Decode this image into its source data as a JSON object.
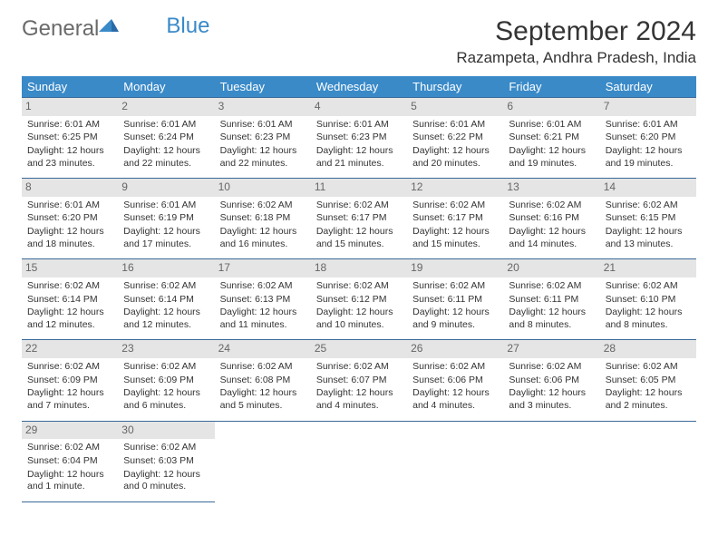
{
  "logo": {
    "text_general": "General",
    "text_blue": "Blue"
  },
  "title": "September 2024",
  "location": "Razampeta, Andhra Pradesh, India",
  "colors": {
    "header_bg": "#3a8ac8",
    "header_fg": "#ffffff",
    "cell_border": "#3a6a9a",
    "daynum_bg": "#e5e5e5",
    "daynum_fg": "#666666",
    "text": "#333333",
    "logo_gray": "#6a6a6a",
    "logo_blue": "#3a8ac8"
  },
  "day_headers": [
    "Sunday",
    "Monday",
    "Tuesday",
    "Wednesday",
    "Thursday",
    "Friday",
    "Saturday"
  ],
  "weeks": [
    [
      {
        "n": "1",
        "sr": "Sunrise: 6:01 AM",
        "ss": "Sunset: 6:25 PM",
        "dl": "Daylight: 12 hours and 23 minutes."
      },
      {
        "n": "2",
        "sr": "Sunrise: 6:01 AM",
        "ss": "Sunset: 6:24 PM",
        "dl": "Daylight: 12 hours and 22 minutes."
      },
      {
        "n": "3",
        "sr": "Sunrise: 6:01 AM",
        "ss": "Sunset: 6:23 PM",
        "dl": "Daylight: 12 hours and 22 minutes."
      },
      {
        "n": "4",
        "sr": "Sunrise: 6:01 AM",
        "ss": "Sunset: 6:23 PM",
        "dl": "Daylight: 12 hours and 21 minutes."
      },
      {
        "n": "5",
        "sr": "Sunrise: 6:01 AM",
        "ss": "Sunset: 6:22 PM",
        "dl": "Daylight: 12 hours and 20 minutes."
      },
      {
        "n": "6",
        "sr": "Sunrise: 6:01 AM",
        "ss": "Sunset: 6:21 PM",
        "dl": "Daylight: 12 hours and 19 minutes."
      },
      {
        "n": "7",
        "sr": "Sunrise: 6:01 AM",
        "ss": "Sunset: 6:20 PM",
        "dl": "Daylight: 12 hours and 19 minutes."
      }
    ],
    [
      {
        "n": "8",
        "sr": "Sunrise: 6:01 AM",
        "ss": "Sunset: 6:20 PM",
        "dl": "Daylight: 12 hours and 18 minutes."
      },
      {
        "n": "9",
        "sr": "Sunrise: 6:01 AM",
        "ss": "Sunset: 6:19 PM",
        "dl": "Daylight: 12 hours and 17 minutes."
      },
      {
        "n": "10",
        "sr": "Sunrise: 6:02 AM",
        "ss": "Sunset: 6:18 PM",
        "dl": "Daylight: 12 hours and 16 minutes."
      },
      {
        "n": "11",
        "sr": "Sunrise: 6:02 AM",
        "ss": "Sunset: 6:17 PM",
        "dl": "Daylight: 12 hours and 15 minutes."
      },
      {
        "n": "12",
        "sr": "Sunrise: 6:02 AM",
        "ss": "Sunset: 6:17 PM",
        "dl": "Daylight: 12 hours and 15 minutes."
      },
      {
        "n": "13",
        "sr": "Sunrise: 6:02 AM",
        "ss": "Sunset: 6:16 PM",
        "dl": "Daylight: 12 hours and 14 minutes."
      },
      {
        "n": "14",
        "sr": "Sunrise: 6:02 AM",
        "ss": "Sunset: 6:15 PM",
        "dl": "Daylight: 12 hours and 13 minutes."
      }
    ],
    [
      {
        "n": "15",
        "sr": "Sunrise: 6:02 AM",
        "ss": "Sunset: 6:14 PM",
        "dl": "Daylight: 12 hours and 12 minutes."
      },
      {
        "n": "16",
        "sr": "Sunrise: 6:02 AM",
        "ss": "Sunset: 6:14 PM",
        "dl": "Daylight: 12 hours and 12 minutes."
      },
      {
        "n": "17",
        "sr": "Sunrise: 6:02 AM",
        "ss": "Sunset: 6:13 PM",
        "dl": "Daylight: 12 hours and 11 minutes."
      },
      {
        "n": "18",
        "sr": "Sunrise: 6:02 AM",
        "ss": "Sunset: 6:12 PM",
        "dl": "Daylight: 12 hours and 10 minutes."
      },
      {
        "n": "19",
        "sr": "Sunrise: 6:02 AM",
        "ss": "Sunset: 6:11 PM",
        "dl": "Daylight: 12 hours and 9 minutes."
      },
      {
        "n": "20",
        "sr": "Sunrise: 6:02 AM",
        "ss": "Sunset: 6:11 PM",
        "dl": "Daylight: 12 hours and 8 minutes."
      },
      {
        "n": "21",
        "sr": "Sunrise: 6:02 AM",
        "ss": "Sunset: 6:10 PM",
        "dl": "Daylight: 12 hours and 8 minutes."
      }
    ],
    [
      {
        "n": "22",
        "sr": "Sunrise: 6:02 AM",
        "ss": "Sunset: 6:09 PM",
        "dl": "Daylight: 12 hours and 7 minutes."
      },
      {
        "n": "23",
        "sr": "Sunrise: 6:02 AM",
        "ss": "Sunset: 6:09 PM",
        "dl": "Daylight: 12 hours and 6 minutes."
      },
      {
        "n": "24",
        "sr": "Sunrise: 6:02 AM",
        "ss": "Sunset: 6:08 PM",
        "dl": "Daylight: 12 hours and 5 minutes."
      },
      {
        "n": "25",
        "sr": "Sunrise: 6:02 AM",
        "ss": "Sunset: 6:07 PM",
        "dl": "Daylight: 12 hours and 4 minutes."
      },
      {
        "n": "26",
        "sr": "Sunrise: 6:02 AM",
        "ss": "Sunset: 6:06 PM",
        "dl": "Daylight: 12 hours and 4 minutes."
      },
      {
        "n": "27",
        "sr": "Sunrise: 6:02 AM",
        "ss": "Sunset: 6:06 PM",
        "dl": "Daylight: 12 hours and 3 minutes."
      },
      {
        "n": "28",
        "sr": "Sunrise: 6:02 AM",
        "ss": "Sunset: 6:05 PM",
        "dl": "Daylight: 12 hours and 2 minutes."
      }
    ],
    [
      {
        "n": "29",
        "sr": "Sunrise: 6:02 AM",
        "ss": "Sunset: 6:04 PM",
        "dl": "Daylight: 12 hours and 1 minute."
      },
      {
        "n": "30",
        "sr": "Sunrise: 6:02 AM",
        "ss": "Sunset: 6:03 PM",
        "dl": "Daylight: 12 hours and 0 minutes."
      },
      null,
      null,
      null,
      null,
      null
    ]
  ]
}
